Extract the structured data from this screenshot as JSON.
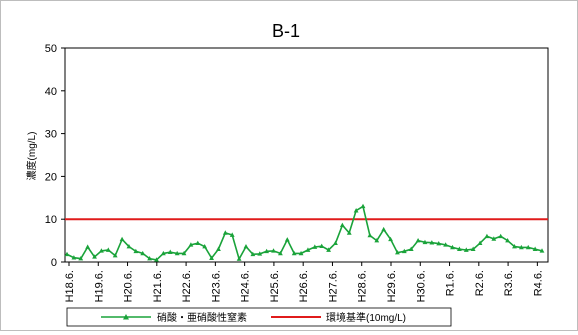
{
  "chart_data": {
    "type": "line",
    "title": "B-1",
    "ylabel": "濃度(mg/L)",
    "xlabel": "",
    "ylim": [
      0,
      50
    ],
    "yticks": [
      0,
      10,
      20,
      30,
      40,
      50
    ],
    "grid": false,
    "legend_position": "bottom",
    "x_tick_labels": [
      "H18.6.",
      "H19.6.",
      "H20.6.",
      "H21.6.",
      "H22.6.",
      "H23.6.",
      "H24.6.",
      "H25.6.",
      "H26.6.",
      "H27.6.",
      "H28.6.",
      "H29.6.",
      "H30.6.",
      "R1.6.",
      "R2.6.",
      "R3.6.",
      "R4.6."
    ],
    "series": [
      {
        "name": "硝酸・亜硝酸性窒素",
        "color": "#1aa33a",
        "marker": "triangle",
        "values": [
          1.8,
          1.0,
          0.8,
          3.5,
          1.2,
          2.6,
          2.8,
          1.5,
          5.3,
          3.6,
          2.5,
          2.0,
          0.8,
          0.5,
          2.0,
          2.3,
          2.0,
          2.0,
          4.0,
          4.4,
          3.6,
          0.9,
          3.0,
          6.8,
          6.3,
          0.7,
          3.6,
          1.8,
          1.9,
          2.5,
          2.6,
          2.0,
          5.2,
          2.0,
          2.0,
          2.8,
          3.5,
          3.7,
          2.8,
          4.4,
          8.6,
          6.8,
          12.0,
          13.0,
          6.2,
          5.0,
          7.6,
          5.3,
          2.2,
          2.5,
          3.0,
          5.0,
          4.6,
          4.5,
          4.3,
          4.0,
          3.4,
          3.0,
          2.8,
          3.0,
          4.4,
          6.0,
          5.4,
          6.0,
          5.0,
          3.6,
          3.4,
          3.4,
          3.0,
          2.6
        ]
      },
      {
        "name": "環境基準(10mg/L)",
        "color": "#e01b1b",
        "type": "reference_line",
        "values": [
          10,
          10
        ]
      }
    ]
  }
}
